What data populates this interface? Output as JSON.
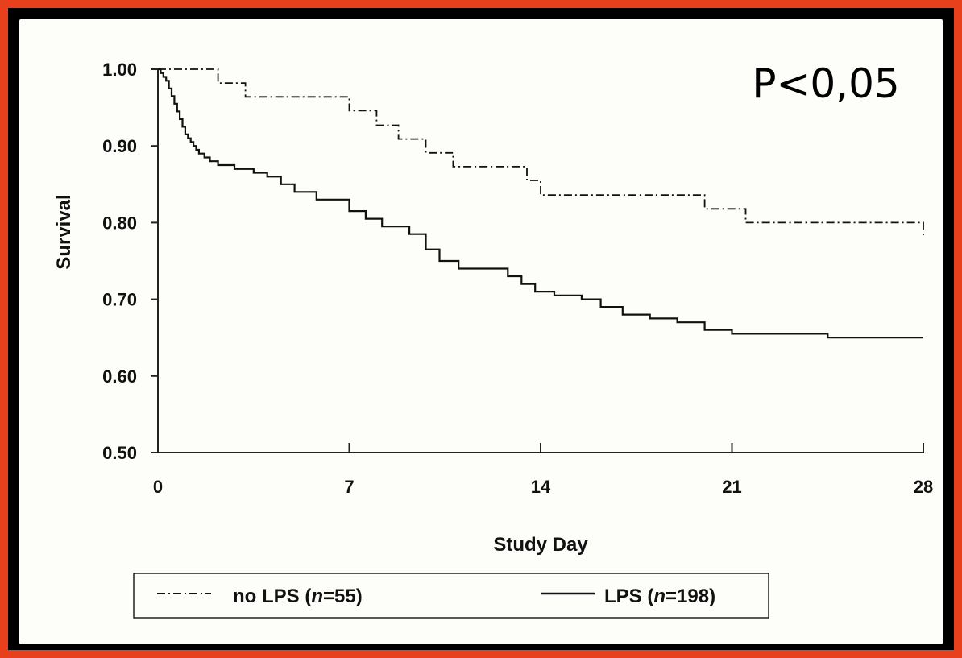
{
  "chart_data": {
    "type": "line",
    "title": "",
    "xlabel": "Study Day",
    "ylabel": "Survival",
    "xlim": [
      0,
      28
    ],
    "ylim": [
      0.5,
      1.0
    ],
    "x_ticks": [
      0,
      7,
      14,
      21,
      28
    ],
    "y_ticks": [
      1.0,
      0.9,
      0.8,
      0.7,
      0.6,
      0.5
    ],
    "x_tick_labels": [
      "0",
      "7",
      "14",
      "21",
      "28"
    ],
    "y_tick_labels": [
      "1.00",
      "0.90",
      "0.80",
      "0.70",
      "0.60",
      "0.50"
    ],
    "grid": false,
    "legend_position": "bottom",
    "annotation": "P<0,05",
    "series": [
      {
        "name": "no LPS",
        "n_label": "n",
        "n_value": "=55",
        "style": "dash-dot",
        "x": [
          0,
          1.8,
          2.2,
          3.2,
          7.0,
          8.0,
          8.8,
          9.8,
          10.8,
          13.5,
          14.0,
          20.0,
          21.5,
          28.0
        ],
        "y": [
          1.0,
          1.0,
          0.982,
          0.964,
          0.946,
          0.927,
          0.909,
          0.891,
          0.873,
          0.855,
          0.836,
          0.818,
          0.8,
          0.782
        ]
      },
      {
        "name": "LPS",
        "n_label": "n",
        "n_value": "=198",
        "style": "solid",
        "x": [
          0,
          0.1,
          0.2,
          0.3,
          0.4,
          0.5,
          0.6,
          0.7,
          0.8,
          0.9,
          1.0,
          1.1,
          1.2,
          1.3,
          1.4,
          1.5,
          1.7,
          1.9,
          2.2,
          2.8,
          3.5,
          4.0,
          4.5,
          5.0,
          5.8,
          7.0,
          7.6,
          8.2,
          9.2,
          9.8,
          10.3,
          11.0,
          12.8,
          13.3,
          13.8,
          14.5,
          15.5,
          16.2,
          17.0,
          18.0,
          19.0,
          20.0,
          21.0,
          23.0,
          24.5,
          26.5,
          28.0
        ],
        "y": [
          1.0,
          0.995,
          0.99,
          0.985,
          0.975,
          0.965,
          0.955,
          0.945,
          0.935,
          0.925,
          0.915,
          0.91,
          0.905,
          0.9,
          0.895,
          0.89,
          0.885,
          0.88,
          0.875,
          0.87,
          0.865,
          0.86,
          0.85,
          0.84,
          0.83,
          0.815,
          0.805,
          0.795,
          0.785,
          0.765,
          0.75,
          0.74,
          0.73,
          0.72,
          0.71,
          0.705,
          0.7,
          0.69,
          0.68,
          0.675,
          0.67,
          0.66,
          0.655,
          0.655,
          0.65,
          0.65,
          0.65
        ]
      }
    ]
  }
}
